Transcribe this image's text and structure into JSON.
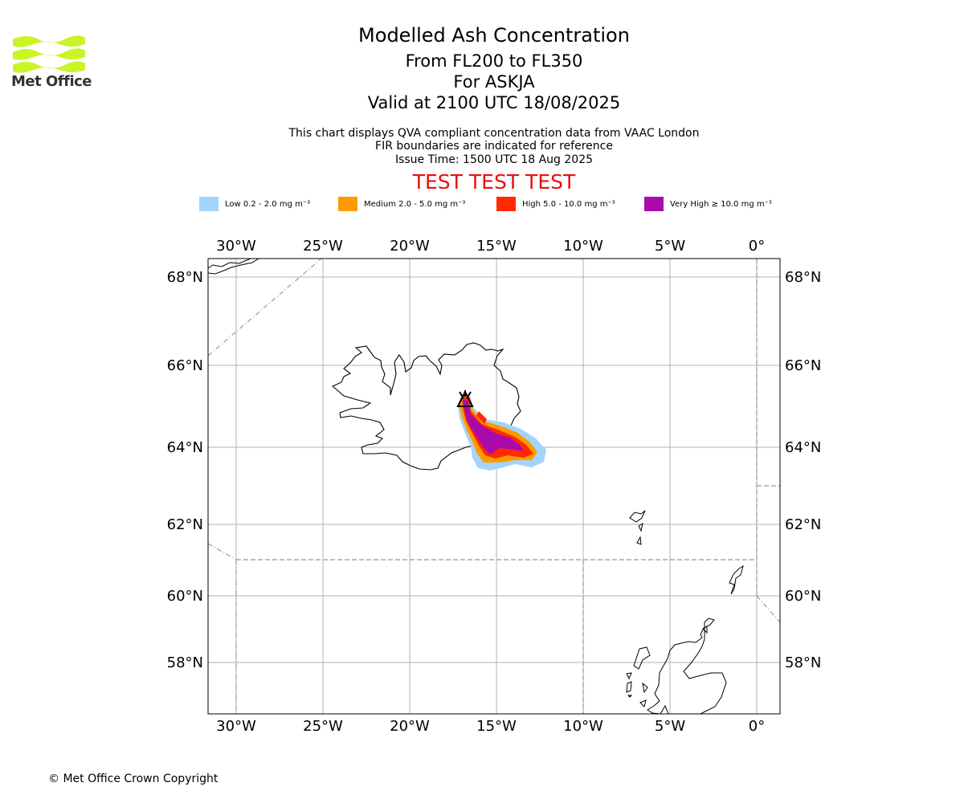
{
  "branding": {
    "logo_text": "Met Office"
  },
  "header": {
    "title": "Modelled Ash Concentration",
    "levels": "From FL200 to FL350",
    "volcano": "For ASKJA",
    "valid": "Valid at 2100 UTC 18/08/2025",
    "note1": "This chart displays QVA compliant concentration data from VAAC London",
    "note2": "FIR boundaries are indicated for reference",
    "note3": "Issue Time: 1500 UTC 18 Aug 2025",
    "test_banner": "TEST TEST TEST"
  },
  "legend": [
    {
      "label": "Low 0.2 - 2.0 mg m⁻³",
      "color": "#a3d4fb"
    },
    {
      "label": "Medium 2.0 - 5.0 mg m⁻³",
      "color": "#ff9a00"
    },
    {
      "label": "High 5.0 - 10.0 mg m⁻³",
      "color": "#ff2a00"
    },
    {
      "label": "Very High ≥ 10.0 mg m⁻³",
      "color": "#aa0aaa"
    }
  ],
  "map": {
    "lon_ticks": [
      "30°W",
      "25°W",
      "20°W",
      "15°W",
      "10°W",
      "5°W",
      "0°"
    ],
    "lat_ticks": [
      "68°N",
      "66°N",
      "64°N",
      "62°N",
      "60°N",
      "58°N"
    ],
    "volcano_marker": "triangle-volcano-icon"
  },
  "footer": {
    "copyright": "© Met Office Crown Copyright"
  }
}
